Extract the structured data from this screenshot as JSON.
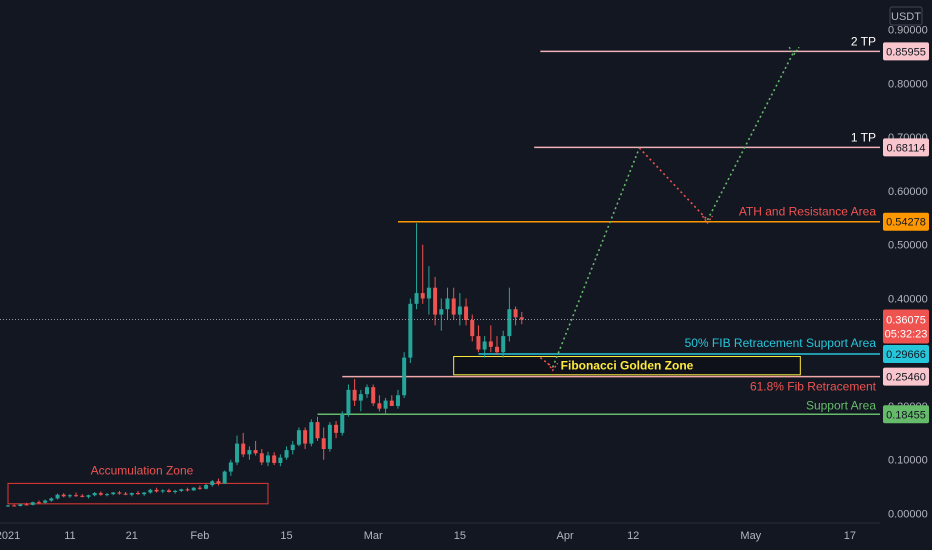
{
  "chart_data": {
    "type": "candlestick",
    "currency": "USDT",
    "ylim": [
      0,
      0.9
    ],
    "y_ticks": [
      "0.90000",
      "0.80000",
      "0.70000",
      "0.60000",
      "0.50000",
      "0.40000",
      "0.30000",
      "0.20000",
      "0.10000",
      "0.00000"
    ],
    "x_ticks": [
      {
        "label": "2021",
        "day": 0
      },
      {
        "label": "11",
        "day": 10
      },
      {
        "label": "21",
        "day": 20
      },
      {
        "label": "Feb",
        "day": 31
      },
      {
        "label": "15",
        "day": 45
      },
      {
        "label": "Mar",
        "day": 59
      },
      {
        "label": "15",
        "day": 73
      },
      {
        "label": "Apr",
        "day": 90
      },
      {
        "label": "12",
        "day": 101
      },
      {
        "label": "May",
        "day": 120
      },
      {
        "label": "17",
        "day": 136
      }
    ],
    "current_price": {
      "value": "0.36075",
      "timer": "05:32:23",
      "level": 0.36075
    },
    "levels": [
      {
        "name": "2 TP",
        "price_label": "0.85955",
        "level": 0.85955,
        "color": "#f0b0b8",
        "start_day": 86
      },
      {
        "name": "1 TP",
        "price_label": "0.68114",
        "level": 0.68114,
        "color": "#f0b0b8",
        "start_day": 85
      },
      {
        "name": "ATH and Resistance Area",
        "price_label": "0.54278",
        "level": 0.54278,
        "color": "#ff9800",
        "start_day": 63
      },
      {
        "name": "50% FIB Retracement Support Area",
        "price_label": "0.29666",
        "level": 0.29666,
        "color": "#26c6da",
        "start_day": 76
      },
      {
        "name": "61.8% Fib Retracement",
        "price_label": "0.25460",
        "level": 0.2546,
        "color": "#f0a8a8",
        "start_day": 54
      },
      {
        "name": "Support Area",
        "price_label": "0.18455",
        "level": 0.18455,
        "color": "#66bb6a",
        "start_day": 50
      }
    ],
    "zones": [
      {
        "name": "Accumulation Zone",
        "day_start": 0,
        "day_end": 42,
        "low": 0.018,
        "high": 0.056,
        "color": "#e53935"
      },
      {
        "name": "Fibonacci Golden Zone",
        "day_start": 72,
        "day_end": 128,
        "low": 0.258,
        "high": 0.292,
        "color": "#ffeb3b"
      }
    ],
    "projection": {
      "points": [
        {
          "day": 86,
          "price": 0.29
        },
        {
          "day": 88,
          "price": 0.272
        },
        {
          "day": 102,
          "price": 0.68
        },
        {
          "day": 113,
          "price": 0.546
        },
        {
          "day": 127,
          "price": 0.86
        }
      ]
    },
    "candles": [
      [
        0,
        0.014,
        0.016,
        0.012,
        0.015
      ],
      [
        1,
        0.015,
        0.017,
        0.013,
        0.014
      ],
      [
        2,
        0.014,
        0.018,
        0.013,
        0.017
      ],
      [
        3,
        0.017,
        0.02,
        0.015,
        0.016
      ],
      [
        4,
        0.016,
        0.022,
        0.015,
        0.021
      ],
      [
        5,
        0.021,
        0.024,
        0.018,
        0.02
      ],
      [
        6,
        0.02,
        0.026,
        0.019,
        0.024
      ],
      [
        7,
        0.024,
        0.03,
        0.022,
        0.028
      ],
      [
        8,
        0.028,
        0.037,
        0.026,
        0.035
      ],
      [
        9,
        0.035,
        0.038,
        0.03,
        0.032
      ],
      [
        10,
        0.032,
        0.036,
        0.029,
        0.034
      ],
      [
        11,
        0.034,
        0.039,
        0.031,
        0.033
      ],
      [
        12,
        0.033,
        0.036,
        0.03,
        0.031
      ],
      [
        13,
        0.031,
        0.035,
        0.028,
        0.034
      ],
      [
        14,
        0.034,
        0.04,
        0.032,
        0.038
      ],
      [
        15,
        0.038,
        0.041,
        0.033,
        0.035
      ],
      [
        16,
        0.035,
        0.038,
        0.032,
        0.036
      ],
      [
        17,
        0.036,
        0.04,
        0.034,
        0.039
      ],
      [
        18,
        0.039,
        0.042,
        0.035,
        0.037
      ],
      [
        19,
        0.037,
        0.04,
        0.034,
        0.035
      ],
      [
        20,
        0.035,
        0.039,
        0.032,
        0.038
      ],
      [
        21,
        0.038,
        0.042,
        0.035,
        0.036
      ],
      [
        22,
        0.036,
        0.04,
        0.033,
        0.039
      ],
      [
        23,
        0.039,
        0.046,
        0.037,
        0.044
      ],
      [
        24,
        0.044,
        0.048,
        0.039,
        0.041
      ],
      [
        25,
        0.041,
        0.045,
        0.038,
        0.043
      ],
      [
        26,
        0.043,
        0.046,
        0.039,
        0.04
      ],
      [
        27,
        0.04,
        0.044,
        0.037,
        0.042
      ],
      [
        28,
        0.042,
        0.046,
        0.04,
        0.045
      ],
      [
        29,
        0.045,
        0.048,
        0.041,
        0.043
      ],
      [
        30,
        0.043,
        0.049,
        0.042,
        0.048
      ],
      [
        31,
        0.048,
        0.052,
        0.044,
        0.046
      ],
      [
        32,
        0.046,
        0.055,
        0.045,
        0.053
      ],
      [
        33,
        0.053,
        0.062,
        0.05,
        0.06
      ],
      [
        34,
        0.06,
        0.065,
        0.052,
        0.056
      ],
      [
        35,
        0.056,
        0.08,
        0.055,
        0.078
      ],
      [
        36,
        0.078,
        0.1,
        0.07,
        0.095
      ],
      [
        37,
        0.095,
        0.145,
        0.09,
        0.13
      ],
      [
        38,
        0.13,
        0.15,
        0.105,
        0.11
      ],
      [
        39,
        0.11,
        0.125,
        0.1,
        0.118
      ],
      [
        40,
        0.118,
        0.135,
        0.108,
        0.112
      ],
      [
        41,
        0.112,
        0.12,
        0.09,
        0.095
      ],
      [
        42,
        0.095,
        0.115,
        0.088,
        0.108
      ],
      [
        43,
        0.108,
        0.114,
        0.09,
        0.094
      ],
      [
        44,
        0.094,
        0.11,
        0.088,
        0.104
      ],
      [
        45,
        0.104,
        0.125,
        0.1,
        0.118
      ],
      [
        46,
        0.118,
        0.135,
        0.11,
        0.128
      ],
      [
        47,
        0.128,
        0.16,
        0.125,
        0.155
      ],
      [
        48,
        0.155,
        0.16,
        0.12,
        0.13
      ],
      [
        49,
        0.13,
        0.175,
        0.125,
        0.17
      ],
      [
        50,
        0.17,
        0.18,
        0.135,
        0.14
      ],
      [
        51,
        0.14,
        0.16,
        0.1,
        0.12
      ],
      [
        52,
        0.12,
        0.17,
        0.115,
        0.165
      ],
      [
        53,
        0.165,
        0.172,
        0.14,
        0.15
      ],
      [
        54,
        0.15,
        0.19,
        0.145,
        0.185
      ],
      [
        55,
        0.185,
        0.24,
        0.18,
        0.23
      ],
      [
        56,
        0.23,
        0.25,
        0.2,
        0.21
      ],
      [
        57,
        0.21,
        0.23,
        0.19,
        0.222
      ],
      [
        58,
        0.222,
        0.24,
        0.215,
        0.235
      ],
      [
        59,
        0.235,
        0.24,
        0.2,
        0.205
      ],
      [
        60,
        0.205,
        0.22,
        0.19,
        0.195
      ],
      [
        61,
        0.195,
        0.215,
        0.185,
        0.21
      ],
      [
        62,
        0.21,
        0.22,
        0.2,
        0.2
      ],
      [
        63,
        0.2,
        0.23,
        0.195,
        0.22
      ],
      [
        64,
        0.22,
        0.3,
        0.215,
        0.29
      ],
      [
        65,
        0.29,
        0.4,
        0.28,
        0.39
      ],
      [
        66,
        0.39,
        0.54,
        0.38,
        0.41
      ],
      [
        67,
        0.41,
        0.5,
        0.39,
        0.4
      ],
      [
        68,
        0.4,
        0.46,
        0.37,
        0.42
      ],
      [
        69,
        0.42,
        0.44,
        0.35,
        0.37
      ],
      [
        70,
        0.37,
        0.4,
        0.34,
        0.38
      ],
      [
        71,
        0.38,
        0.42,
        0.36,
        0.4
      ],
      [
        72,
        0.4,
        0.42,
        0.36,
        0.37
      ],
      [
        73,
        0.37,
        0.41,
        0.35,
        0.385
      ],
      [
        74,
        0.385,
        0.4,
        0.35,
        0.36
      ],
      [
        75,
        0.36,
        0.37,
        0.32,
        0.33
      ],
      [
        76,
        0.33,
        0.35,
        0.3,
        0.305
      ],
      [
        77,
        0.305,
        0.33,
        0.29,
        0.32
      ],
      [
        78,
        0.32,
        0.35,
        0.3,
        0.31
      ],
      [
        79,
        0.31,
        0.33,
        0.295,
        0.3
      ],
      [
        80,
        0.3,
        0.34,
        0.29,
        0.33
      ],
      [
        81,
        0.33,
        0.42,
        0.32,
        0.38
      ],
      [
        82,
        0.38,
        0.385,
        0.35,
        0.365
      ],
      [
        83,
        0.365,
        0.375,
        0.352,
        0.36075
      ]
    ]
  }
}
